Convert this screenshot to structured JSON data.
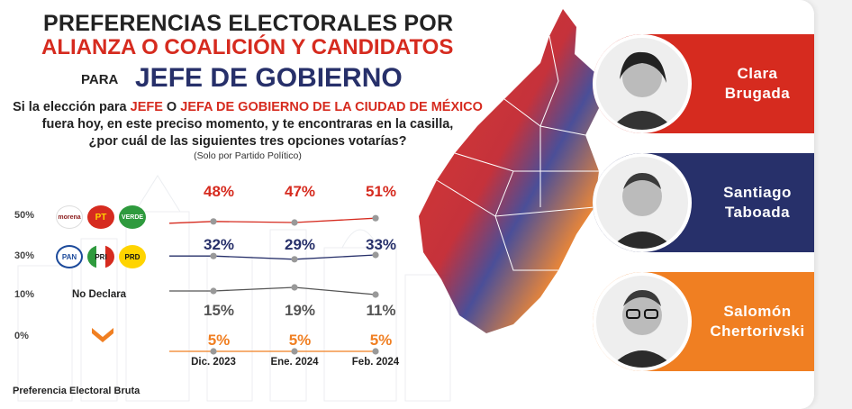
{
  "title": {
    "line1": "PREFERENCIAS ELECTORALES POR",
    "line2": "ALIANZA O COALICIÓN Y CANDIDATOS",
    "para": "PARA",
    "line3": "JEFE DE GOBIERNO"
  },
  "question": {
    "part1": "Si la elección para ",
    "red1": "JEFE",
    "part2": " O ",
    "red2": "JEFA DE GOBIERNO DE LA CIUDAD DE MÉXICO",
    "line2": "fuera hoy, en este preciso momento, y te encontraras en la casilla,",
    "line3": "¿por cuál de las siguientes tres opciones votarías?",
    "note": "(Solo por Partido Político)"
  },
  "footer": "Preferencia Electoral Bruta",
  "logos": {
    "morena": "morena",
    "pt": "PT",
    "verde": "VERDE",
    "pan": "PAN",
    "pri": "PRI",
    "prd": "PRD"
  },
  "candidates": [
    {
      "first": "Clara",
      "last": "Brugada",
      "color": "#d62b1f"
    },
    {
      "first": "Santiago",
      "last": "Taboada",
      "color": "#27306a"
    },
    {
      "first": "Salomón",
      "last": "Chertorivski",
      "color": "#f07f22"
    }
  ],
  "chart_data": {
    "type": "line",
    "categories": [
      "Dic. 2023",
      "Ene. 2024",
      "Feb. 2024"
    ],
    "y_ticks": [
      "50%",
      "30%",
      "10%",
      "0%"
    ],
    "series": [
      {
        "values": [
          48,
          47,
          51
        ],
        "labels": [
          "48%",
          "47%",
          "51%"
        ],
        "color": "#d62b1f"
      },
      {
        "values": [
          32,
          29,
          33
        ],
        "labels": [
          "32%",
          "29%",
          "33%"
        ],
        "color": "#27306a"
      },
      {
        "name": "No Declara",
        "values": [
          15,
          19,
          11
        ],
        "labels": [
          "15%",
          "19%",
          "11%"
        ],
        "color": "#555555"
      },
      {
        "values": [
          5,
          5,
          5
        ],
        "labels": [
          "5%",
          "5%",
          "5%"
        ],
        "color": "#f07f22"
      }
    ]
  }
}
